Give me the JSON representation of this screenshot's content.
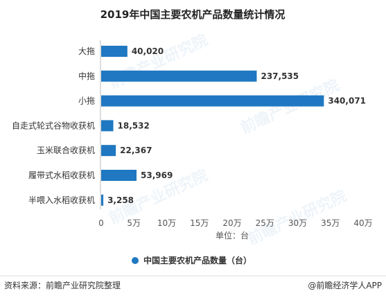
{
  "chart_data": {
    "type": "bar",
    "orientation": "horizontal",
    "title": "2019年中国主要农机产品数量统计情况",
    "categories": [
      "大拖",
      "中拖",
      "小拖",
      "自走式轮式谷物收获机",
      "玉米联合收获机",
      "履带式水稻收获机",
      "半喂入水稻收获机"
    ],
    "series": [
      {
        "name": "中国主要农机产品数量（台）",
        "values": [
          40020,
          237535,
          340071,
          18532,
          22367,
          53969,
          3258
        ],
        "labels": [
          "40,020",
          "237,535",
          "340,071",
          "18,532",
          "22,367",
          "53,969",
          "3,258"
        ]
      }
    ],
    "xlim": [
      0,
      400000
    ],
    "xticks": [
      0,
      50000,
      100000,
      150000,
      200000,
      250000,
      300000,
      350000,
      400000
    ],
    "xtick_labels": [
      "0",
      "5万",
      "10万",
      "15万",
      "20万",
      "25万",
      "30万",
      "35万",
      "40万"
    ],
    "xlabel": "单位：台",
    "legend_position": "bottom",
    "grid": false,
    "bar_color": "#1f78c1"
  },
  "footer": {
    "source": "资料来源：前瞻产业研究院整理",
    "brand": "@前瞻经济学人APP"
  },
  "watermark": "前瞻产业研究院"
}
